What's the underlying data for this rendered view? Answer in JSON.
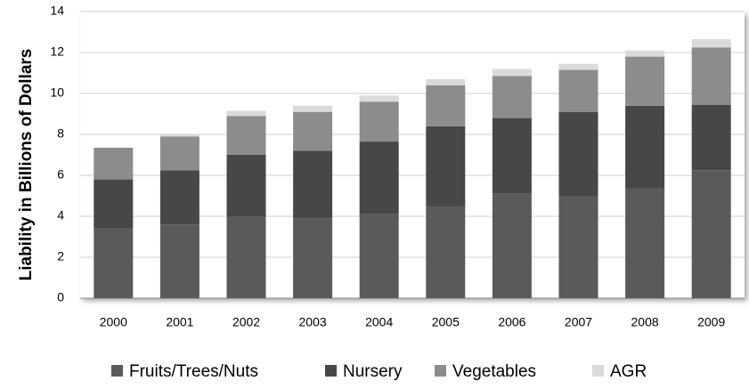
{
  "chart_data": {
    "type": "stacked-bar",
    "y_label": "Liability in Billions of Dollars",
    "categories": [
      "2000",
      "2001",
      "2002",
      "2003",
      "2004",
      "2005",
      "2006",
      "2007",
      "2008",
      "2009"
    ],
    "series": [
      {
        "name": "Fruits/Trees/Nuts",
        "color": "#5a5a5a",
        "values": [
          3.4,
          3.6,
          4.0,
          3.9,
          4.1,
          4.5,
          5.1,
          5.0,
          5.35,
          6.25
        ]
      },
      {
        "name": "Nursery",
        "color": "#474747",
        "values": [
          2.4,
          2.65,
          3.0,
          3.3,
          3.55,
          3.9,
          3.7,
          4.1,
          4.05,
          3.2
        ]
      },
      {
        "name": "Vegetables",
        "color": "#8c8c8c",
        "values": [
          1.55,
          1.65,
          1.9,
          1.9,
          1.95,
          2.0,
          2.05,
          2.05,
          2.4,
          2.8
        ]
      },
      {
        "name": "AGR",
        "color": "#dadada",
        "values": [
          0,
          0.1,
          0.25,
          0.3,
          0.3,
          0.3,
          0.35,
          0.3,
          0.3,
          0.4
        ]
      }
    ],
    "ylim": [
      0,
      14
    ],
    "yticks": [
      0,
      2,
      4,
      6,
      8,
      10,
      12,
      14
    ],
    "grid": true,
    "legend": "bottom"
  }
}
